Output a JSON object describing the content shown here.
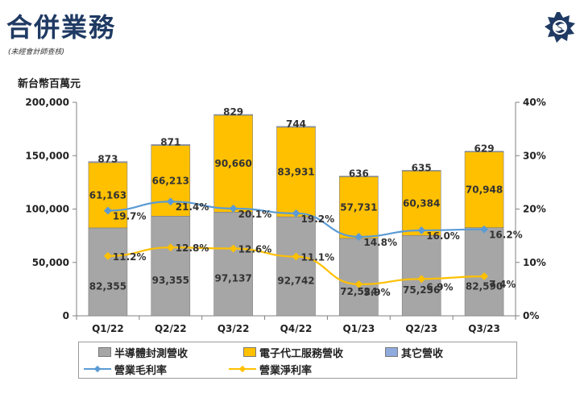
{
  "header": {
    "title": "合併業務",
    "subtitle": "(未經會計師查核)"
  },
  "colors": {
    "semi": "#a6a6a6",
    "ems": "#ffc000",
    "other": "#8faadc",
    "gross": "#5b9bd5",
    "net": "#ffc000",
    "title": "#1f3a63"
  },
  "chart_data": {
    "type": "bar",
    "stacked": true,
    "unit_label": "新台幣百萬元",
    "categories": [
      "Q1/22",
      "Q2/22",
      "Q3/22",
      "Q4/22",
      "Q1/23",
      "Q2/23",
      "Q3/23"
    ],
    "ylim": [
      0,
      200000
    ],
    "yticks": [
      "0",
      "50,000",
      "100,000",
      "150,000",
      "200,000"
    ],
    "y2lim": [
      0,
      40
    ],
    "y2ticks": [
      "0%",
      "10%",
      "20%",
      "30%",
      "40%"
    ],
    "series": [
      {
        "name": "半導體封測營收",
        "kind": "bar",
        "values": [
          82355,
          93355,
          97137,
          92742,
          72524,
          75256,
          82590
        ],
        "labels": [
          "82,355",
          "93,355",
          "97,137",
          "92,742",
          "72,524",
          "75,256",
          "82,590"
        ]
      },
      {
        "name": "電子代工服務營收",
        "kind": "bar",
        "values": [
          61163,
          66213,
          90660,
          83931,
          57731,
          60384,
          70948
        ],
        "labels": [
          "61,163",
          "66,213",
          "90,660",
          "83,931",
          "57,731",
          "60,384",
          "70,948"
        ]
      },
      {
        "name": "其它營收",
        "kind": "bar",
        "values": [
          873,
          871,
          829,
          744,
          636,
          635,
          629
        ],
        "labels": [
          "873",
          "871",
          "829",
          "744",
          "636",
          "635",
          "629"
        ]
      },
      {
        "name": "營業毛利率",
        "kind": "line",
        "axis": "right",
        "values": [
          19.7,
          21.4,
          20.1,
          19.2,
          14.8,
          16.0,
          16.2
        ],
        "labels": [
          "19.7%",
          "21.4%",
          "20.1%",
          "19.2%",
          "14.8%",
          "16.0%",
          "16.2%"
        ]
      },
      {
        "name": "營業淨利率",
        "kind": "line",
        "axis": "right",
        "values": [
          11.2,
          12.8,
          12.6,
          11.1,
          5.9,
          6.9,
          7.4
        ],
        "labels": [
          "11.2%",
          "12.8%",
          "12.6%",
          "11.1%",
          "5.9%",
          "6.9%",
          "7.4%"
        ]
      }
    ],
    "grid": false,
    "legend": "bottom"
  }
}
